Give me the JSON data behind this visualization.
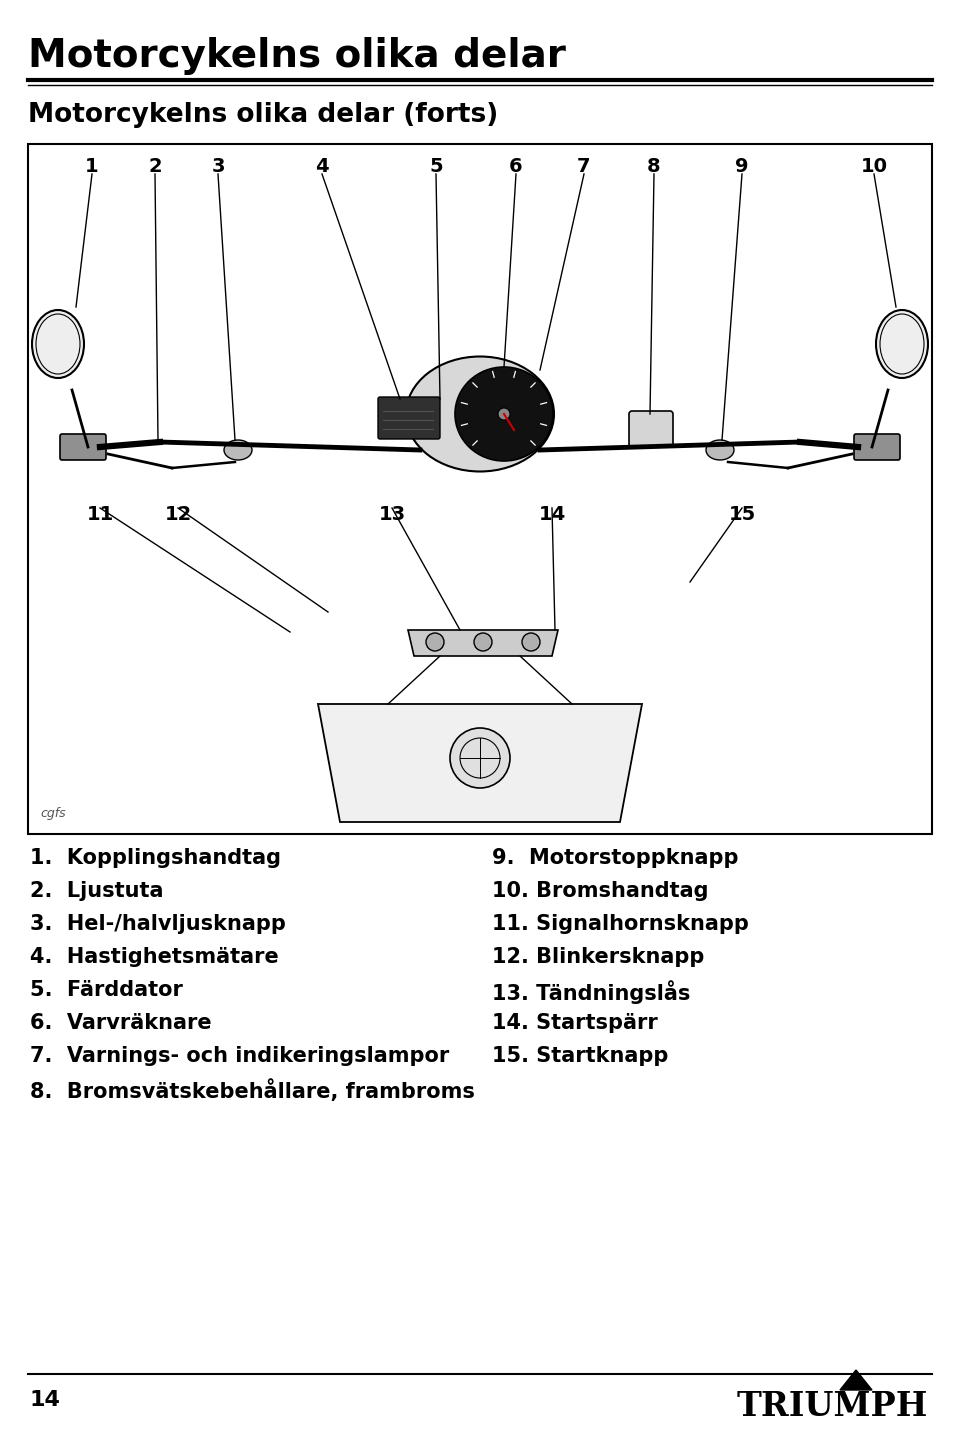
{
  "title": "Motorcykelns olika delar",
  "subtitle": "Motorcykelns olika delar (forts)",
  "bg_color": "#ffffff",
  "border_color": "#000000",
  "page_number": "14",
  "left_items": [
    "1.  Kopplingshandtag",
    "2.  Ljustuta",
    "3.  Hel-/halvljusknapp",
    "4.  Hastighetsmätare",
    "5.  Färddator",
    "6.  Varvräknare",
    "7.  Varnings- och indikeringslampor",
    "8.  Bromsvätskebehållare, frambroms"
  ],
  "right_items": [
    "9.  Motorstoppknapp",
    "10. Bromshandtag",
    "11. Signalhornsknapp",
    "12. Blinkersknapp",
    "13. Tändningslås",
    "14. Startspärr",
    "15. Startknapp"
  ]
}
